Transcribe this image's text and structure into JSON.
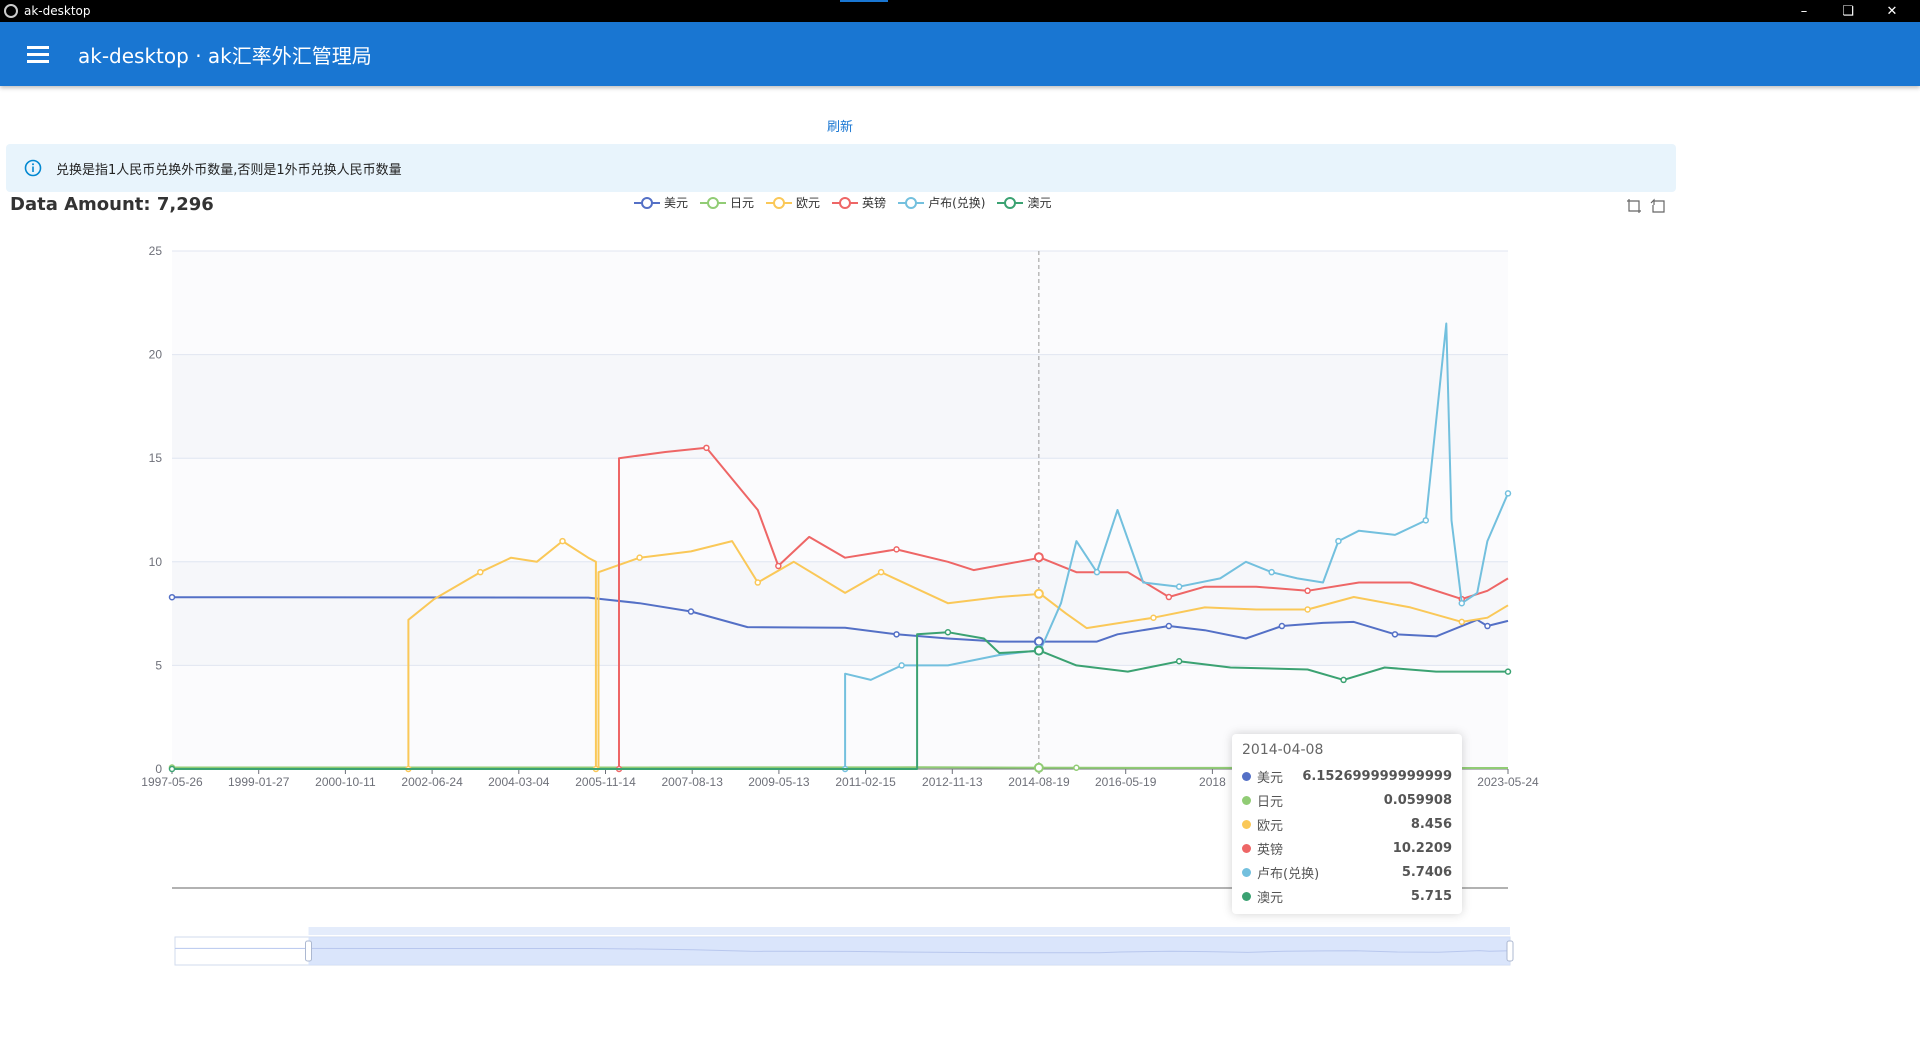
{
  "window": {
    "title": "ak-desktop"
  },
  "appbar": {
    "title": "ak-desktop · ak汇率外汇管理局"
  },
  "actions": {
    "refresh_label": "刷新"
  },
  "alert": {
    "text": "兑换是指1人民币兑换外币数量,否则是1外币兑换人民币数量"
  },
  "summary": {
    "data_amount": "Data Amount: 7,296"
  },
  "colors": {
    "appbar": "#1976d2",
    "alert_bg": "#e8f4fc"
  },
  "icons": {
    "menu": "menu-icon",
    "theme": "dark-mode-icon",
    "info": "info-icon",
    "zoom": "data-zoom-icon",
    "reset": "zoom-reset-icon"
  },
  "tooltip": {
    "date": "2014-04-08",
    "rows": [
      {
        "name": "美元",
        "value": "6.152699999999999",
        "color": "#5470c6"
      },
      {
        "name": "日元",
        "value": "0.059908",
        "color": "#91cc75"
      },
      {
        "name": "欧元",
        "value": "8.456",
        "color": "#fac858"
      },
      {
        "name": "英镑",
        "value": "10.2209",
        "color": "#ee6666"
      },
      {
        "name": "卢布(兑换)",
        "value": "5.7406",
        "color": "#73c0de"
      },
      {
        "name": "澳元",
        "value": "5.715",
        "color": "#3ba272"
      }
    ]
  },
  "chart_data": {
    "type": "line",
    "x_ticks": [
      "1997-05-26",
      "1999-01-27",
      "2000-10-11",
      "2002-06-24",
      "2004-03-04",
      "2005-11-14",
      "2007-08-13",
      "2009-05-13",
      "2011-02-15",
      "2012-11-13",
      "2014-08-19",
      "2016-05-19",
      "2018",
      "2023-05-24"
    ],
    "y_ticks": [
      "0",
      "5",
      "10",
      "15",
      "20",
      "25"
    ],
    "ylim": [
      0,
      25
    ],
    "x_range": [
      1997.4,
      2023.4
    ],
    "grid": true,
    "legend": "top-center",
    "cursor_date": "2014-04-08",
    "series": [
      {
        "name": "美元",
        "color": "#5470c6",
        "points": [
          [
            1997.4,
            8.29
          ],
          [
            2005.5,
            8.27
          ],
          [
            2006.5,
            8.0
          ],
          [
            2007.5,
            7.6
          ],
          [
            2008.6,
            6.85
          ],
          [
            2010.5,
            6.82
          ],
          [
            2011.5,
            6.5
          ],
          [
            2012.5,
            6.3
          ],
          [
            2013.5,
            6.15
          ],
          [
            2014.3,
            6.15
          ],
          [
            2015.4,
            6.15
          ],
          [
            2015.8,
            6.5
          ],
          [
            2016.8,
            6.9
          ],
          [
            2017.5,
            6.7
          ],
          [
            2018.3,
            6.3
          ],
          [
            2019.0,
            6.9
          ],
          [
            2019.8,
            7.05
          ],
          [
            2020.4,
            7.1
          ],
          [
            2021.2,
            6.5
          ],
          [
            2022.0,
            6.4
          ],
          [
            2022.8,
            7.2
          ],
          [
            2023.0,
            6.9
          ],
          [
            2023.4,
            7.15
          ]
        ]
      },
      {
        "name": "日元",
        "color": "#91cc75",
        "points": [
          [
            1997.4,
            0.07
          ],
          [
            2005.0,
            0.07
          ],
          [
            2012.0,
            0.08
          ],
          [
            2015.0,
            0.06
          ],
          [
            2023.4,
            0.05
          ]
        ]
      },
      {
        "name": "欧元",
        "color": "#fac858",
        "points": [
          [
            2002.0,
            0.0
          ],
          [
            2002.0,
            7.2
          ],
          [
            2002.5,
            8.2
          ],
          [
            2003.4,
            9.5
          ],
          [
            2004.0,
            10.2
          ],
          [
            2004.5,
            10.0
          ],
          [
            2005.0,
            11.0
          ],
          [
            2005.5,
            10.2
          ],
          [
            2005.65,
            10.0
          ],
          [
            2005.65,
            0.0
          ],
          [
            2005.7,
            0.0
          ],
          [
            2005.7,
            9.5
          ],
          [
            2006.5,
            10.2
          ],
          [
            2007.5,
            10.5
          ],
          [
            2008.3,
            11.0
          ],
          [
            2008.8,
            9.0
          ],
          [
            2009.5,
            10.0
          ],
          [
            2010.5,
            8.5
          ],
          [
            2011.2,
            9.5
          ],
          [
            2012.5,
            8.0
          ],
          [
            2013.5,
            8.3
          ],
          [
            2014.3,
            8.45
          ],
          [
            2014.8,
            7.5
          ],
          [
            2015.2,
            6.8
          ],
          [
            2016.5,
            7.3
          ],
          [
            2017.5,
            7.8
          ],
          [
            2018.5,
            7.7
          ],
          [
            2019.5,
            7.7
          ],
          [
            2020.4,
            8.3
          ],
          [
            2021.5,
            7.8
          ],
          [
            2022.5,
            7.1
          ],
          [
            2023.0,
            7.3
          ],
          [
            2023.4,
            7.9
          ]
        ]
      },
      {
        "name": "英镑",
        "color": "#ee6666",
        "points": [
          [
            2006.1,
            0.0
          ],
          [
            2006.1,
            15.0
          ],
          [
            2007.0,
            15.3
          ],
          [
            2007.8,
            15.5
          ],
          [
            2008.3,
            14.0
          ],
          [
            2008.8,
            12.5
          ],
          [
            2009.2,
            9.8
          ],
          [
            2009.8,
            11.2
          ],
          [
            2010.5,
            10.2
          ],
          [
            2011.5,
            10.6
          ],
          [
            2012.5,
            10.0
          ],
          [
            2013.0,
            9.6
          ],
          [
            2014.3,
            10.2
          ],
          [
            2015.0,
            9.5
          ],
          [
            2016.0,
            9.5
          ],
          [
            2016.8,
            8.3
          ],
          [
            2017.5,
            8.8
          ],
          [
            2018.5,
            8.8
          ],
          [
            2019.5,
            8.6
          ],
          [
            2020.5,
            9.0
          ],
          [
            2021.5,
            9.0
          ],
          [
            2022.5,
            8.2
          ],
          [
            2023.0,
            8.6
          ],
          [
            2023.4,
            9.2
          ]
        ]
      },
      {
        "name": "卢布(兑换)",
        "color": "#73c0de",
        "points": [
          [
            2010.5,
            0.0
          ],
          [
            2010.5,
            4.6
          ],
          [
            2011.0,
            4.3
          ],
          [
            2011.6,
            5.0
          ],
          [
            2012.5,
            5.0
          ],
          [
            2013.5,
            5.5
          ],
          [
            2014.3,
            5.74
          ],
          [
            2014.7,
            8.0
          ],
          [
            2015.0,
            11.0
          ],
          [
            2015.4,
            9.5
          ],
          [
            2015.8,
            12.5
          ],
          [
            2016.3,
            9.0
          ],
          [
            2017.0,
            8.8
          ],
          [
            2017.8,
            9.2
          ],
          [
            2018.3,
            10.0
          ],
          [
            2018.8,
            9.5
          ],
          [
            2019.3,
            9.2
          ],
          [
            2019.8,
            9.0
          ],
          [
            2020.1,
            11.0
          ],
          [
            2020.5,
            11.5
          ],
          [
            2021.2,
            11.3
          ],
          [
            2021.8,
            12.0
          ],
          [
            2022.2,
            21.5
          ],
          [
            2022.3,
            12.0
          ],
          [
            2022.5,
            8.0
          ],
          [
            2022.8,
            8.5
          ],
          [
            2023.0,
            11.0
          ],
          [
            2023.4,
            13.3
          ]
        ]
      },
      {
        "name": "澳元",
        "color": "#3ba272",
        "points": [
          [
            1997.4,
            0.0
          ],
          [
            2011.9,
            0.0
          ],
          [
            2011.9,
            6.5
          ],
          [
            2012.5,
            6.6
          ],
          [
            2013.2,
            6.3
          ],
          [
            2013.5,
            5.6
          ],
          [
            2014.3,
            5.7
          ],
          [
            2015.0,
            5.0
          ],
          [
            2016.0,
            4.7
          ],
          [
            2017.0,
            5.2
          ],
          [
            2018.0,
            4.9
          ],
          [
            2019.5,
            4.8
          ],
          [
            2020.2,
            4.3
          ],
          [
            2021.0,
            4.9
          ],
          [
            2022.0,
            4.7
          ],
          [
            2023.4,
            4.7
          ]
        ]
      }
    ],
    "datazoom": {
      "start_fraction": 0.1,
      "end_fraction": 1.0
    }
  }
}
